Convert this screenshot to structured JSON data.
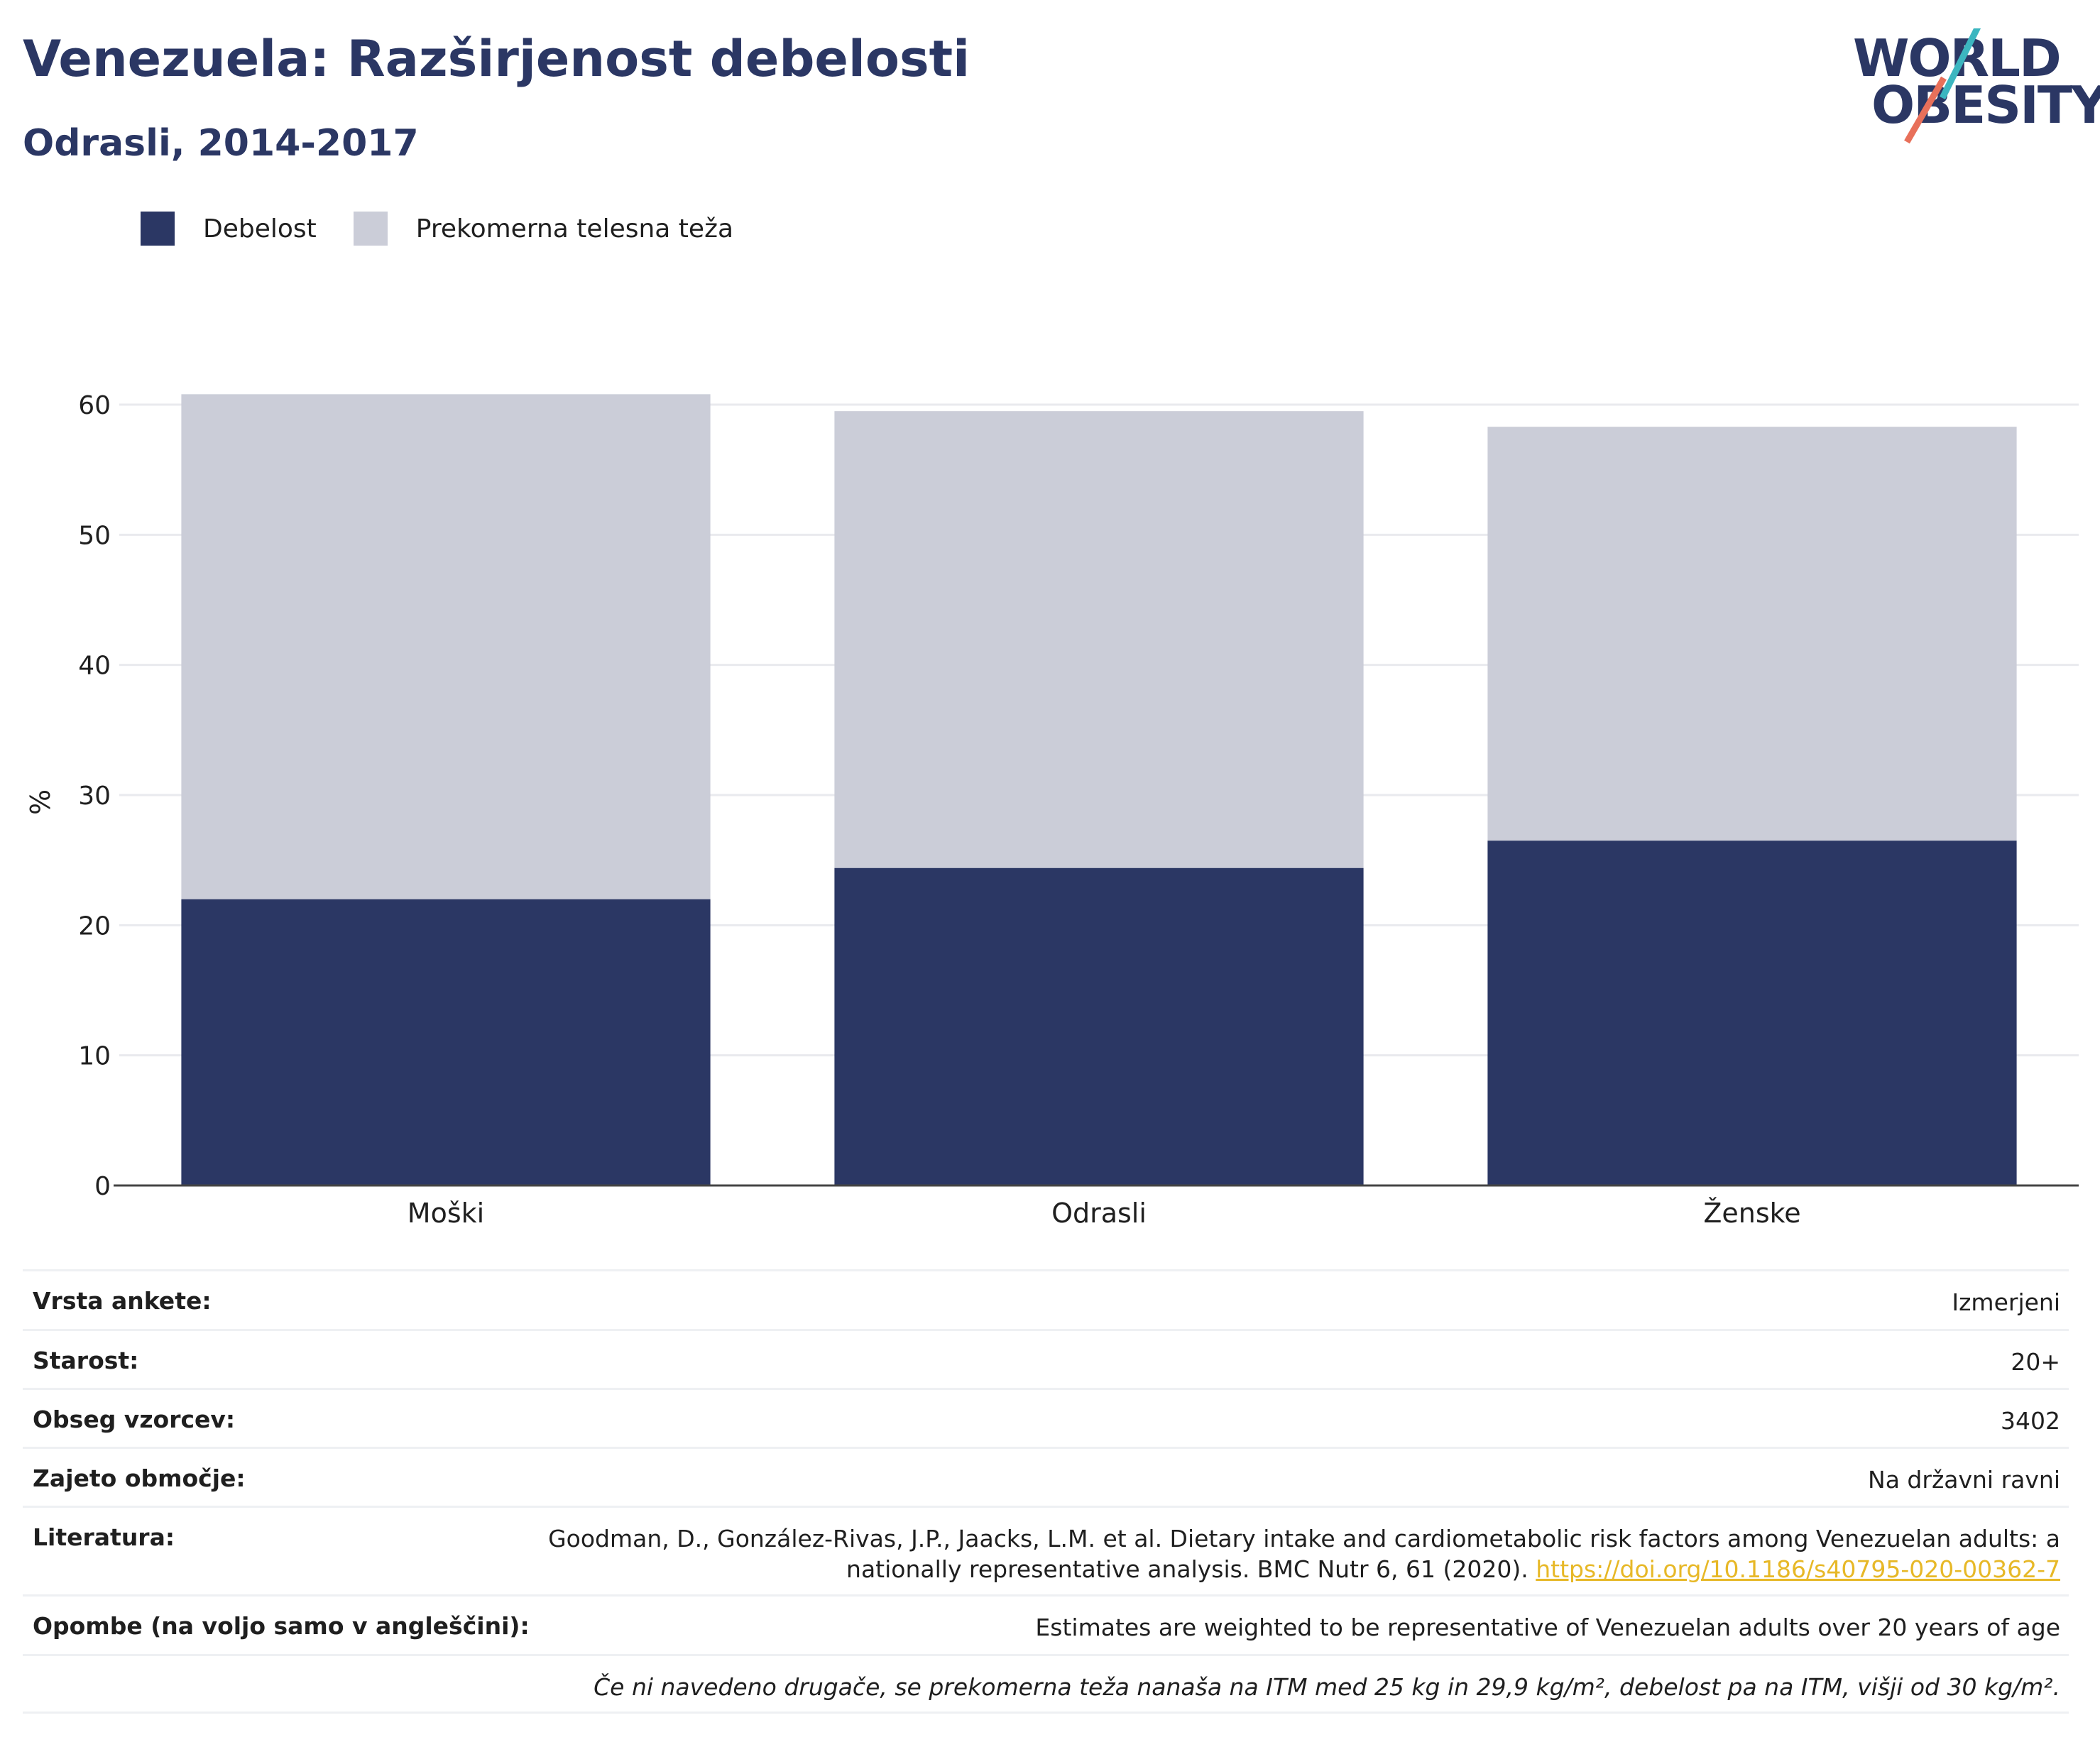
{
  "header": {
    "title": "Venezuela: Razširjenost debelosti",
    "subtitle": "Odrasli, 2014-2017"
  },
  "logo": {
    "line1": "WORLD",
    "line2": "OBESITY"
  },
  "colors": {
    "obesity": "#2b3764",
    "overweight": "#cbcdd8",
    "accent_red": "#e8705a",
    "accent_teal": "#3cb6c0",
    "link": "#e7b827"
  },
  "legend": [
    {
      "label": "Debelost",
      "color": "#2b3764"
    },
    {
      "label": "Prekomerna telesna teža",
      "color": "#cbcdd8"
    }
  ],
  "chart_data": {
    "type": "bar",
    "stacked": true,
    "categories": [
      "Moški",
      "Odrasli",
      "Ženske"
    ],
    "series": [
      {
        "name": "Debelost",
        "values": [
          22.0,
          24.4,
          26.5
        ]
      },
      {
        "name": "Prekomerna telesna teža",
        "values": [
          38.8,
          35.1,
          31.8
        ]
      }
    ],
    "ylabel": "%",
    "ylim": [
      0,
      60
    ],
    "yticks": [
      0,
      10,
      20,
      30,
      40,
      50,
      60
    ],
    "grid": true,
    "legend_position": "top-left"
  },
  "meta": {
    "survey_type": {
      "key": "Vrsta ankete:",
      "value": "Izmerjeni"
    },
    "age": {
      "key": "Starost:",
      "value": "20+"
    },
    "sample": {
      "key": "Obseg vzorcev:",
      "value": "3402"
    },
    "coverage": {
      "key": "Zajeto območje:",
      "value": "Na državni ravni"
    },
    "literature": {
      "key": "Literatura:",
      "line1": "Goodman, D., González-Rivas, J.P., Jaacks, L.M. et al. Dietary intake and cardiometabolic risk factors among Venezuelan adults: a",
      "line2": "nationally representative analysis. BMC Nutr 6, 61 (2020).",
      "doi": "https://doi.org/10.1186/s40795-020-00362-7"
    },
    "notes": {
      "key": "Opombe (na voljo samo v angleščini):",
      "value": "Estimates are weighted to be representative of Venezuelan adults over 20 years of age"
    },
    "footnote": "Če ni navedeno drugače, se prekomerna teža nanaša na ITM med 25 kg in 29,9 kg/m², debelost pa na ITM, višji od 30 kg/m²."
  }
}
